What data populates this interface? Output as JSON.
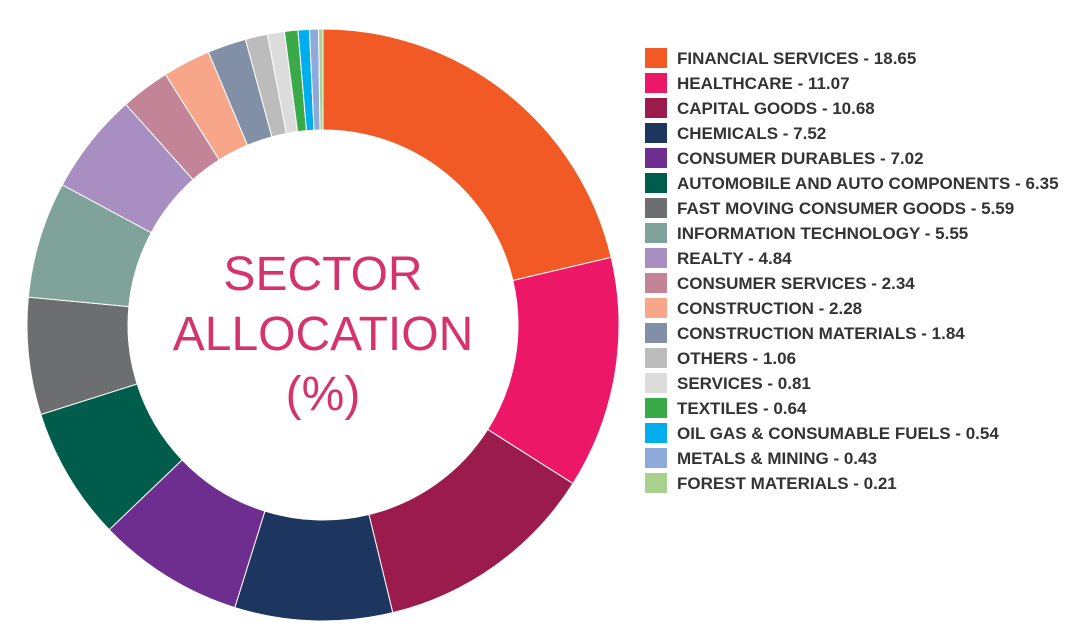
{
  "chart_data": {
    "type": "donut",
    "title": "SECTOR ALLOCATION (%)",
    "categories": [
      "FINANCIAL SERVICES - 18.65",
      "HEALTHCARE - 11.07",
      "CAPITAL GOODS - 10.68",
      "CHEMICALS - 7.52",
      "CONSUMER DURABLES - 7.02",
      "AUTOMOBILE AND AUTO COMPONENTS - 6.35",
      "FAST MOVING CONSUMER GOODS - 5.59",
      "INFORMATION TECHNOLOGY - 5.55",
      "REALTY - 4.84",
      "CONSUMER SERVICES - 2.34",
      "CONSTRUCTION - 2.28",
      "CONSTRUCTION MATERIALS - 1.84",
      "OTHERS - 1.06",
      "SERVICES - 0.81",
      "TEXTILES - 0.64",
      "OIL GAS & CONSUMABLE FUELS - 0.54",
      "METALS & MINING - 0.43",
      "FOREST MATERIALS - 0.21"
    ],
    "values": [
      18.65,
      11.07,
      10.68,
      7.52,
      7.02,
      6.35,
      5.59,
      5.55,
      4.84,
      2.34,
      2.28,
      1.84,
      1.06,
      0.81,
      0.64,
      0.54,
      0.43,
      0.21
    ],
    "colors": [
      "#f15a24",
      "#ec1767",
      "#9b1b4d",
      "#1d3660",
      "#6d2e8f",
      "#005c4b",
      "#6d6e70",
      "#7fa39a",
      "#a98ec2",
      "#c38497",
      "#f7a68a",
      "#8190a6",
      "#bcbcbc",
      "#dcdcdc",
      "#3aaa49",
      "#00aeef",
      "#8eaadb",
      "#a9d18e"
    ]
  }
}
